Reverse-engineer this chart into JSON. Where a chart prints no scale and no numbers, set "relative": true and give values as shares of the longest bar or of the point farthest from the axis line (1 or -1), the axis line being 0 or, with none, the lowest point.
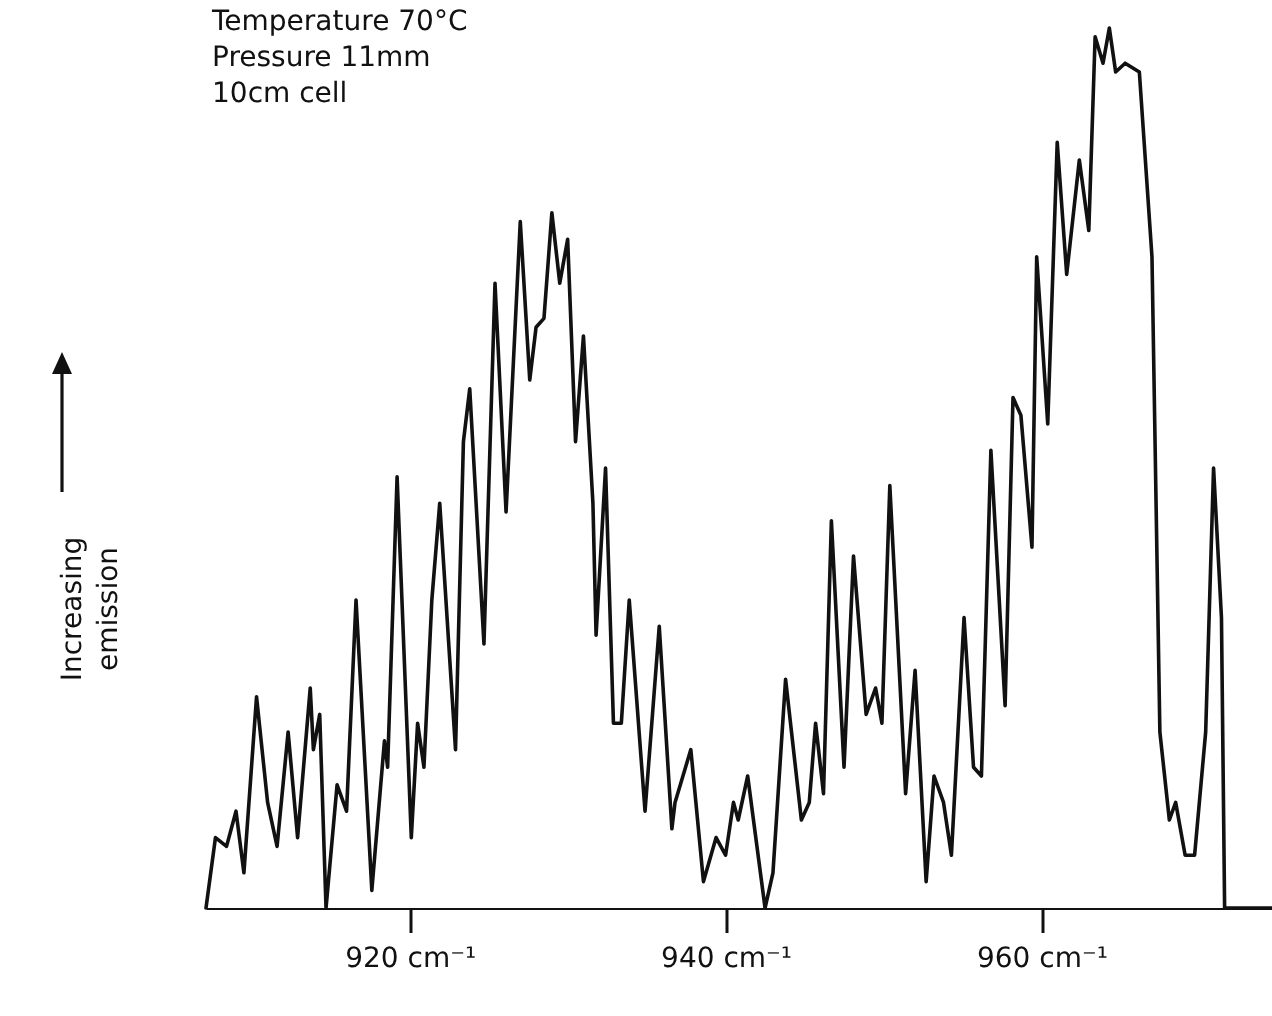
{
  "chart_data": {
    "type": "line",
    "relative": true,
    "ylabel": "Increasing emission",
    "annotations": [
      "Temperature 70°C",
      "Pressure 11mm",
      "10cm cell"
    ],
    "xticks": [
      {
        "value": 920,
        "label": "920 cm⁻¹"
      },
      {
        "value": 940,
        "label": "940 cm⁻¹"
      },
      {
        "value": 960,
        "label": "960 cm⁻¹"
      }
    ],
    "xlim": [
      907.1,
      974.6
    ],
    "grid": false,
    "marker": "none",
    "line_style": "solid",
    "series": [
      {
        "color": "#111111",
        "x": [
          907.1,
          907.7,
          908.4,
          909.0,
          909.5,
          910.3,
          911.0,
          911.6,
          912.3,
          912.9,
          913.7,
          913.9,
          914.3,
          914.7,
          915.4,
          916.0,
          916.6,
          917.6,
          918.4,
          918.6,
          919.2,
          920.1,
          920.5,
          920.9,
          921.4,
          921.9,
          922.9,
          923.4,
          923.8,
          924.7,
          925.4,
          926.1,
          927.0,
          927.6,
          928.0,
          928.5,
          929.0,
          929.5,
          930.0,
          930.5,
          931.0,
          931.6,
          931.8,
          932.4,
          932.9,
          933.4,
          933.9,
          934.9,
          935.8,
          936.6,
          936.8,
          937.8,
          938.6,
          939.4,
          940.0,
          940.5,
          940.8,
          941.4,
          942.5,
          943.0,
          943.8,
          944.8,
          945.3,
          945.7,
          946.2,
          946.7,
          947.5,
          948.1,
          948.9,
          949.5,
          949.9,
          950.4,
          951.4,
          952.0,
          952.7,
          953.2,
          953.8,
          954.3,
          955.1,
          955.7,
          956.2,
          956.8,
          957.7,
          958.2,
          958.7,
          959.4,
          959.7,
          960.4,
          961.0,
          961.6,
          962.4,
          963.0,
          963.4,
          963.9,
          964.3,
          964.7,
          965.3,
          966.2,
          967.0,
          967.5,
          968.1,
          968.5,
          969.1,
          969.7,
          970.4,
          970.9,
          971.4,
          971.6,
          972.5,
          974.6
        ],
        "values": [
          0.0,
          0.08,
          0.07,
          0.11,
          0.04,
          0.24,
          0.12,
          0.07,
          0.2,
          0.08,
          0.25,
          0.18,
          0.22,
          0.0,
          0.14,
          0.11,
          0.35,
          0.02,
          0.19,
          0.16,
          0.49,
          0.08,
          0.21,
          0.16,
          0.35,
          0.46,
          0.18,
          0.53,
          0.59,
          0.3,
          0.71,
          0.45,
          0.78,
          0.6,
          0.66,
          0.67,
          0.79,
          0.71,
          0.76,
          0.53,
          0.65,
          0.46,
          0.31,
          0.5,
          0.21,
          0.21,
          0.35,
          0.11,
          0.32,
          0.09,
          0.12,
          0.18,
          0.03,
          0.08,
          0.06,
          0.12,
          0.1,
          0.15,
          0.0,
          0.04,
          0.26,
          0.1,
          0.12,
          0.21,
          0.13,
          0.44,
          0.16,
          0.4,
          0.22,
          0.25,
          0.21,
          0.48,
          0.13,
          0.27,
          0.03,
          0.15,
          0.12,
          0.06,
          0.33,
          0.16,
          0.15,
          0.52,
          0.23,
          0.58,
          0.56,
          0.41,
          0.74,
          0.55,
          0.87,
          0.72,
          0.85,
          0.77,
          0.99,
          0.96,
          1.0,
          0.95,
          0.96,
          0.95,
          0.74,
          0.2,
          0.1,
          0.12,
          0.06,
          0.06,
          0.2,
          0.5,
          0.33,
          0.0,
          0.0,
          0.0
        ]
      }
    ]
  }
}
